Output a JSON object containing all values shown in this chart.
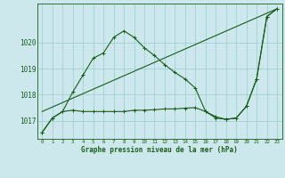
{
  "background_color": "#cce8ec",
  "grid_color": "#99cccc",
  "line_color": "#1a5c1a",
  "title": "Graphe pression niveau de la mer (hPa)",
  "yticks": [
    1017,
    1018,
    1019,
    1020
  ],
  "ylim": [
    1016.3,
    1021.5
  ],
  "xlim": [
    -0.5,
    23.5
  ],
  "xticks": [
    0,
    1,
    2,
    3,
    4,
    5,
    6,
    7,
    8,
    9,
    10,
    11,
    12,
    13,
    14,
    15,
    16,
    17,
    18,
    19,
    20,
    21,
    22,
    23
  ],
  "series1_x": [
    0,
    1,
    2,
    3,
    4,
    5,
    6,
    7,
    8,
    9,
    10,
    11,
    12,
    13,
    14,
    15,
    16,
    17,
    18,
    19,
    20,
    21,
    22,
    23
  ],
  "series1_y": [
    1016.55,
    1017.1,
    1017.35,
    1018.1,
    1018.75,
    1019.4,
    1019.6,
    1020.2,
    1020.45,
    1020.2,
    1019.8,
    1019.5,
    1019.15,
    1018.85,
    1018.6,
    1018.25,
    1017.35,
    1017.1,
    1017.05,
    1017.1,
    1017.55,
    1018.6,
    1021.0,
    1021.3
  ],
  "series2_x": [
    0,
    1,
    2,
    3,
    4,
    5,
    6,
    7,
    8,
    9,
    10,
    11,
    12,
    13,
    14,
    15,
    16,
    17,
    18,
    19,
    20,
    21,
    22,
    23
  ],
  "series2_y": [
    1016.55,
    1017.1,
    1017.35,
    1017.4,
    1017.35,
    1017.35,
    1017.35,
    1017.35,
    1017.35,
    1017.4,
    1017.4,
    1017.42,
    1017.45,
    1017.45,
    1017.48,
    1017.5,
    1017.35,
    1017.15,
    1017.05,
    1017.1,
    1017.55,
    1018.6,
    1021.0,
    1021.3
  ],
  "series3_x": [
    0,
    23
  ],
  "series3_y": [
    1017.35,
    1021.3
  ]
}
